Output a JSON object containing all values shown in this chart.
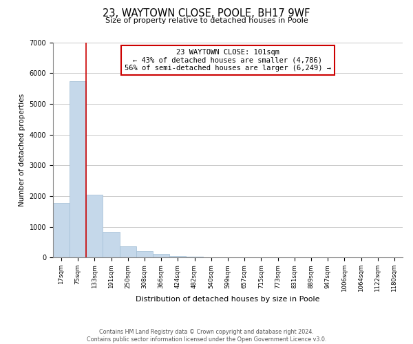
{
  "title": "23, WAYTOWN CLOSE, POOLE, BH17 9WF",
  "subtitle": "Size of property relative to detached houses in Poole",
  "xlabel": "Distribution of detached houses by size in Poole",
  "ylabel": "Number of detached properties",
  "bar_labels": [
    "17sqm",
    "75sqm",
    "133sqm",
    "191sqm",
    "250sqm",
    "308sqm",
    "366sqm",
    "424sqm",
    "482sqm",
    "540sqm",
    "599sqm",
    "657sqm",
    "715sqm",
    "773sqm",
    "831sqm",
    "889sqm",
    "947sqm",
    "1006sqm",
    "1064sqm",
    "1122sqm",
    "1180sqm"
  ],
  "bar_values": [
    1780,
    5730,
    2050,
    830,
    370,
    220,
    110,
    55,
    20,
    10,
    5,
    3,
    1,
    0,
    0,
    0,
    0,
    0,
    0,
    0,
    0
  ],
  "bar_color": "#c5d8ea",
  "bar_edge_color": "#a0bdd4",
  "property_line_color": "#cc0000",
  "property_line_x": 1.5,
  "annotation_title": "23 WAYTOWN CLOSE: 101sqm",
  "annotation_line1": "← 43% of detached houses are smaller (4,786)",
  "annotation_line2": "56% of semi-detached houses are larger (6,249) →",
  "annotation_box_color": "#ffffff",
  "annotation_box_edge": "#cc0000",
  "ylim": [
    0,
    7000
  ],
  "yticks": [
    0,
    1000,
    2000,
    3000,
    4000,
    5000,
    6000,
    7000
  ],
  "grid_color": "#c8c8c8",
  "background_color": "#ffffff",
  "footer_line1": "Contains HM Land Registry data © Crown copyright and database right 2024.",
  "footer_line2": "Contains public sector information licensed under the Open Government Licence v3.0."
}
